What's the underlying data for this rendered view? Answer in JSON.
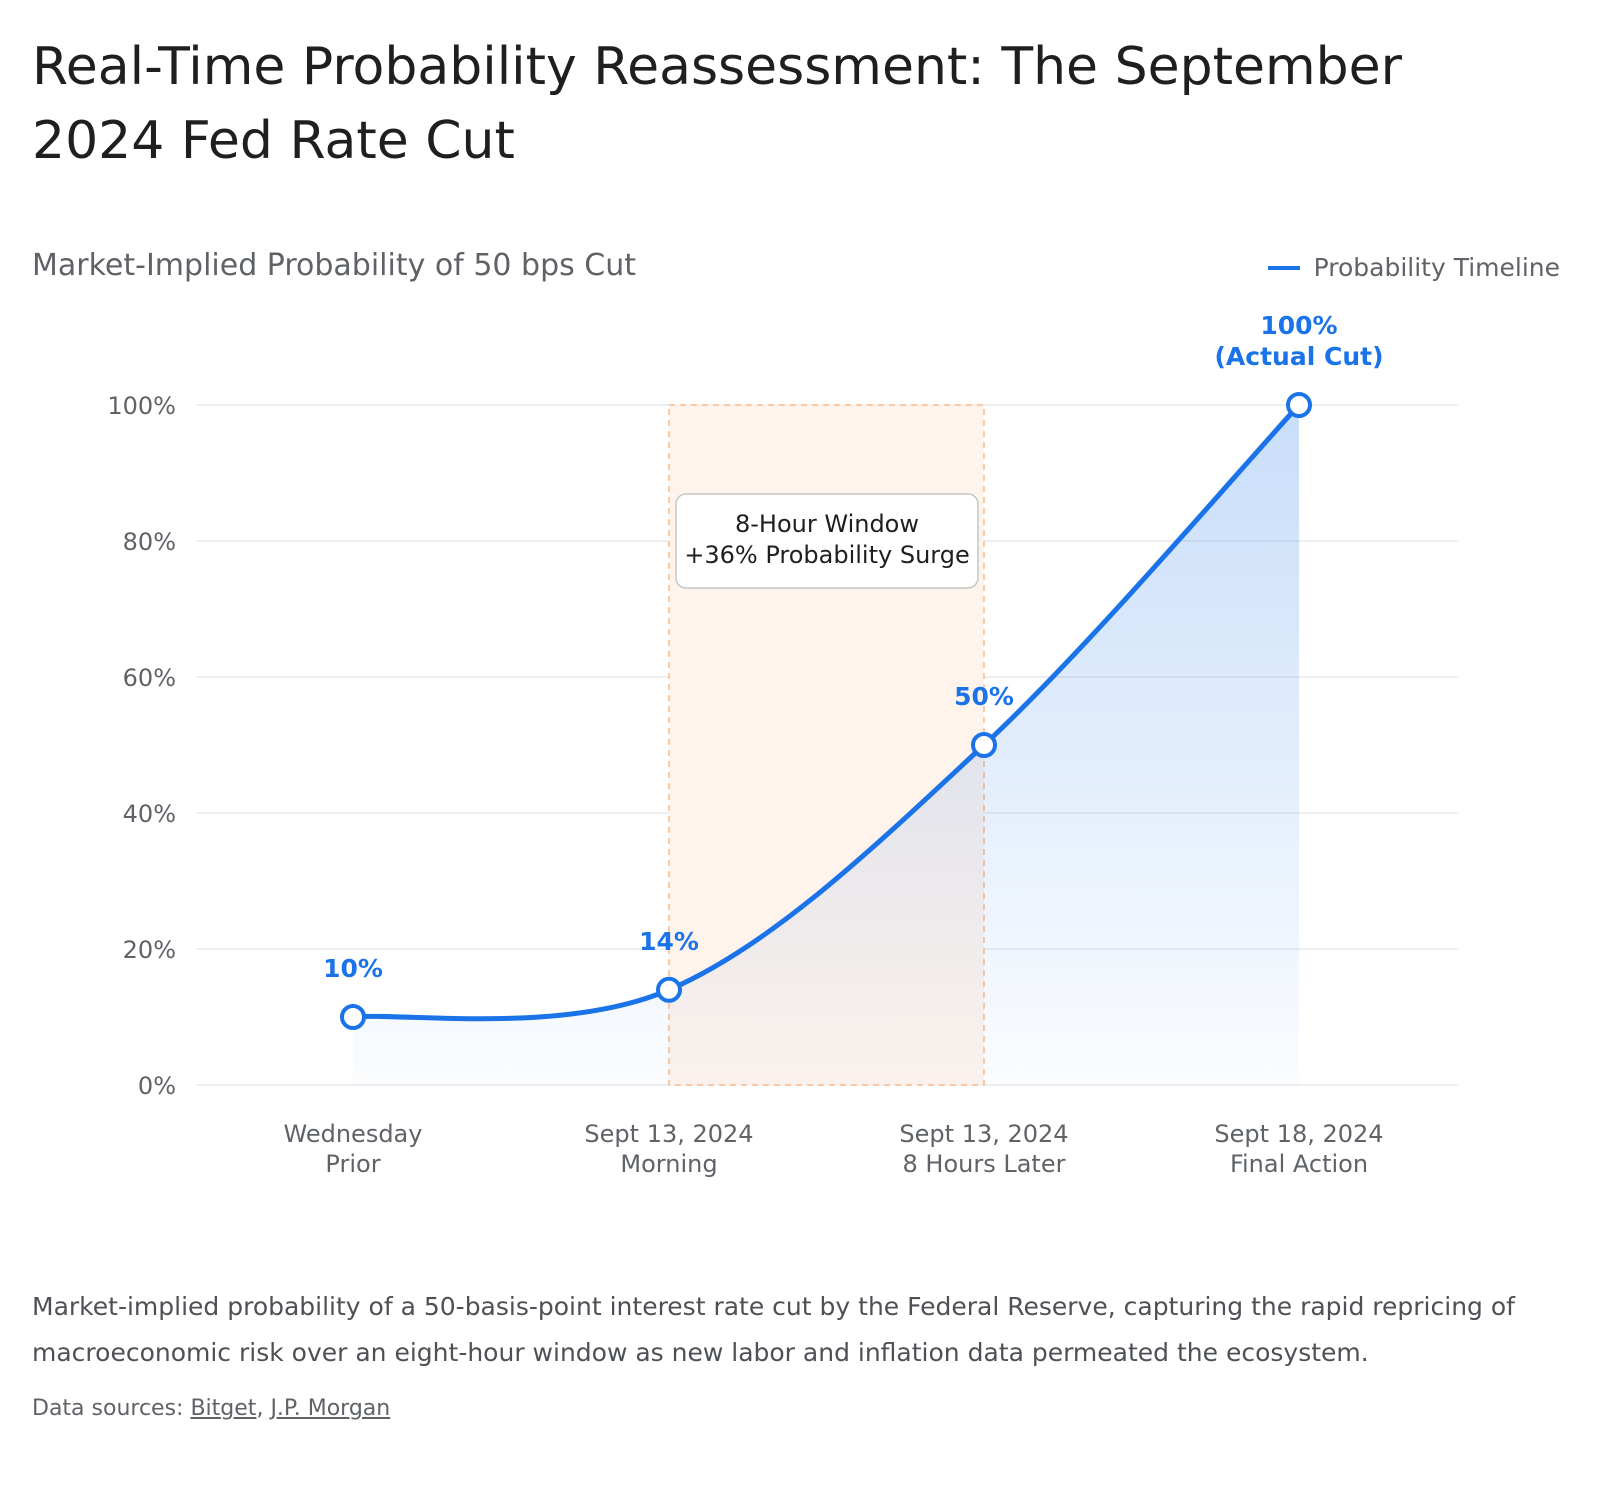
{
  "title": "Real-Time Probability Reassessment: The September 2024 Fed Rate Cut",
  "subtitle": "Market-Implied Probability of 50 bps Cut",
  "legend": {
    "label": "Probability Timeline",
    "color": "#1a73e8"
  },
  "chart_data": {
    "type": "line",
    "title": "Market-Implied Probability of 50 bps Cut",
    "xlabel": "",
    "ylabel": "",
    "ylim": [
      0,
      100
    ],
    "yticks": [
      "0%",
      "20%",
      "40%",
      "60%",
      "80%",
      "100%"
    ],
    "grid": true,
    "legend_position": "top-right",
    "categories": [
      [
        "Wednesday",
        "Prior"
      ],
      [
        "Sept 13, 2024",
        "Morning"
      ],
      [
        "Sept 13, 2024",
        "8 Hours Later"
      ],
      [
        "Sept 18, 2024",
        "Final Action"
      ]
    ],
    "series": [
      {
        "name": "Probability Timeline",
        "values": [
          10,
          14,
          50,
          100
        ],
        "color": "#1a73e8",
        "point_labels": [
          [
            "10%"
          ],
          [
            "14%"
          ],
          [
            "50%"
          ],
          [
            "100%",
            "(Actual Cut)"
          ]
        ]
      }
    ],
    "highlight": {
      "from_index": 1,
      "to_index": 2,
      "color": "#fbbc8a",
      "label": [
        "8-Hour Window",
        "+36% Probability Surge"
      ]
    }
  },
  "caption": "Market-implied probability of a 50-basis-point interest rate cut by the Federal Reserve, capturing the rapid repricing of macroeconomic risk over an eight-hour window as new labor and inflation data permeated the ecosystem.",
  "sources": {
    "prefix": "Data sources:",
    "links": [
      "Bitget",
      "J.P. Morgan"
    ],
    "separator": ","
  }
}
